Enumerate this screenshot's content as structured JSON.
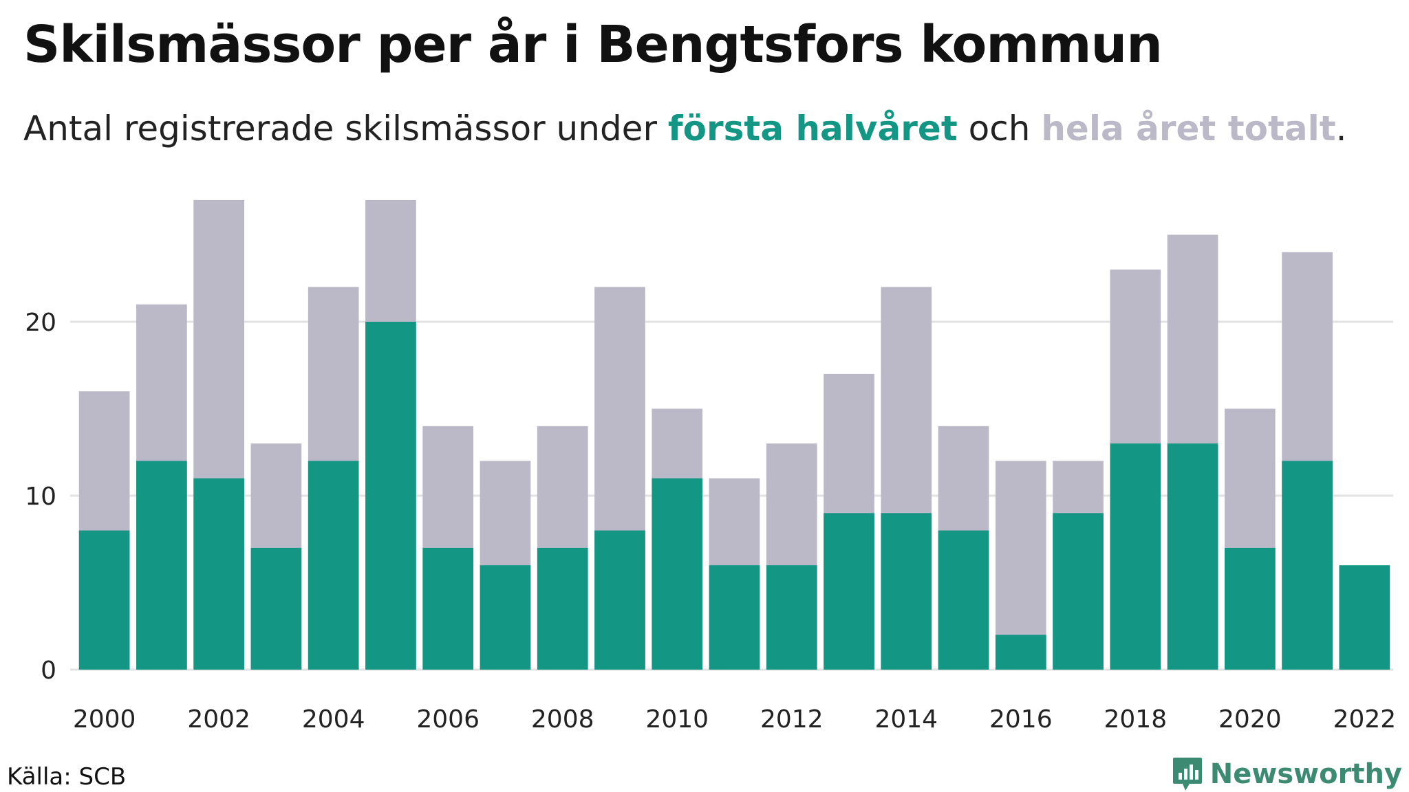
{
  "header": {
    "title": "Skilsmässor per år i Bengtsfors kommun",
    "subtitle_pre": "Antal registrerade skilsmässor under ",
    "subtitle_first": "första halvåret",
    "subtitle_mid": " och ",
    "subtitle_total": "hela året totalt",
    "subtitle_end": "."
  },
  "footer": {
    "source": "Källa: SCB",
    "brand": "Newsworthy"
  },
  "colors": {
    "first_half": "#149685",
    "total": "#bbb9c8",
    "grid": "#e2e2e2",
    "brand": "#3d8a72"
  },
  "icons": {
    "brand": "bar-chart-speech-bubble-icon"
  },
  "chart_data": {
    "type": "bar",
    "title": "Skilsmässor per år i Bengtsfors kommun",
    "subtitle": "Antal registrerade skilsmässor under första halvåret och hela året totalt.",
    "categories": [
      2000,
      2001,
      2002,
      2003,
      2004,
      2005,
      2006,
      2007,
      2008,
      2009,
      2010,
      2011,
      2012,
      2013,
      2014,
      2015,
      2016,
      2017,
      2018,
      2019,
      2020,
      2021,
      2022
    ],
    "series": [
      {
        "name": "hela året totalt",
        "color": "#bbb9c8",
        "values": [
          16,
          21,
          27,
          13,
          22,
          27,
          14,
          12,
          14,
          22,
          15,
          11,
          13,
          17,
          22,
          14,
          12,
          12,
          23,
          25,
          15,
          24,
          null
        ]
      },
      {
        "name": "första halvåret",
        "color": "#149685",
        "values": [
          8,
          12,
          11,
          7,
          12,
          20,
          7,
          6,
          7,
          8,
          11,
          6,
          6,
          9,
          9,
          8,
          2,
          9,
          13,
          13,
          7,
          12,
          6
        ]
      }
    ],
    "x_tick_labels": [
      "2000",
      "2002",
      "2004",
      "2006",
      "2008",
      "2010",
      "2012",
      "2014",
      "2016",
      "2018",
      "2020",
      "2022"
    ],
    "y_ticks": [
      0,
      10,
      20
    ],
    "y_tick_labels": [
      "0",
      "10",
      "20"
    ],
    "ylim": [
      0,
      27
    ],
    "grid": true,
    "xlabel": "",
    "ylabel": ""
  }
}
